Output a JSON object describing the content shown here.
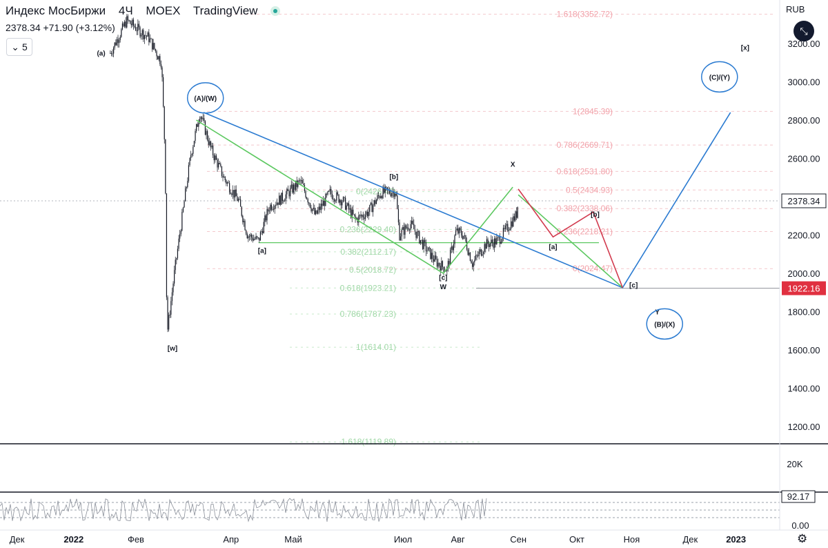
{
  "header": {
    "symbol": "Индекс МосБиржи",
    "interval": "4Ч",
    "exchange": "MOEX",
    "source": "TradingView",
    "last": "2378.34",
    "change": "+71.90 (+3.12%)",
    "interval_selector": "5",
    "currency": "RUB"
  },
  "colors": {
    "candle": "#131722",
    "trend_blue": "#2b7bd1",
    "trend_green": "#5cc860",
    "projection_red": "#d23a4e",
    "fib_red_text": "#f2a0a8",
    "fib_green_text": "#9fd8a6",
    "price_tag": "#131722",
    "target_tag": "#e03040"
  },
  "chart_data": {
    "type": "candlestick",
    "title": "",
    "x_ticks": [
      "Дек",
      "2022",
      "Фев",
      "Апр",
      "Май",
      "Июл",
      "Авг",
      "Сен",
      "Окт",
      "Ноя",
      "Дек",
      "2023"
    ],
    "y_ticks": [
      "3200.00",
      "3000.00",
      "2800.00",
      "2600.00",
      "2400.00",
      "2200.00",
      "2000.00",
      "1800.00",
      "1600.00",
      "1400.00",
      "1200.00"
    ],
    "ylim": [
      1100,
      3430
    ],
    "price_path": [
      [
        "2022-01-25",
        3150
      ],
      [
        "2022-02-03",
        3320
      ],
      [
        "2022-02-15",
        3230
      ],
      [
        "2022-02-22",
        3100
      ],
      [
        "2022-02-24",
        2600
      ],
      [
        "2022-02-25",
        1680
      ],
      [
        "2022-03-01",
        2000
      ],
      [
        "2022-03-10",
        2620
      ],
      [
        "2022-03-15",
        2840
      ],
      [
        "2022-03-21",
        2650
      ],
      [
        "2022-03-28",
        2500
      ],
      [
        "2022-04-05",
        2380
      ],
      [
        "2022-04-10",
        2200
      ],
      [
        "2022-04-16",
        2170
      ],
      [
        "2022-04-22",
        2350
      ],
      [
        "2022-04-30",
        2400
      ],
      [
        "2022-05-09",
        2480
      ],
      [
        "2022-05-17",
        2300
      ],
      [
        "2022-05-25",
        2420
      ],
      [
        "2022-06-01",
        2380
      ],
      [
        "2022-06-08",
        2280
      ],
      [
        "2022-06-15",
        2320
      ],
      [
        "2022-06-22",
        2420
      ],
      [
        "2022-06-30",
        2430
      ],
      [
        "2022-07-02",
        2200
      ],
      [
        "2022-07-08",
        2260
      ],
      [
        "2022-07-15",
        2150
      ],
      [
        "2022-07-22",
        2060
      ],
      [
        "2022-07-28",
        2020
      ],
      [
        "2022-08-02",
        2220
      ],
      [
        "2022-08-06",
        2200
      ],
      [
        "2022-08-11",
        2050
      ],
      [
        "2022-08-18",
        2150
      ],
      [
        "2022-08-25",
        2170
      ],
      [
        "2022-08-31",
        2250
      ],
      [
        "2022-09-04",
        2306
      ],
      [
        "2022-09-05",
        2378.34
      ]
    ],
    "last_price": 2378.34,
    "target_price": 1922.16,
    "horizontal_lines": [
      2378.34,
      1922.16,
      2160
    ],
    "trendlines": [
      {
        "color": "blue",
        "points": [
          [
            "2022-03-17",
            2840
          ],
          [
            "2022-11-01",
            1925
          ],
          [
            "2022-12-30",
            2840
          ]
        ]
      },
      {
        "color": "green",
        "points": [
          [
            "2022-03-13",
            2800
          ],
          [
            "2022-07-26",
            2000
          ],
          [
            "2022-09-02",
            2450
          ]
        ]
      },
      {
        "color": "green",
        "points": [
          [
            "2022-09-05",
            2410
          ],
          [
            "2022-11-01",
            1925
          ]
        ]
      },
      {
        "color": "red",
        "points": [
          [
            "2022-09-05",
            2440
          ],
          [
            "2022-09-24",
            2190
          ],
          [
            "2022-10-16",
            2320
          ],
          [
            "2022-11-01",
            1925
          ]
        ]
      }
    ],
    "fib_red": [
      {
        "label": "1.618(3352.72)",
        "value": 3352.72
      },
      {
        "label": "1(2845.39)",
        "value": 2845.39
      },
      {
        "label": "0.786(2669.71)",
        "value": 2669.71
      },
      {
        "label": "0.618(2531.80)",
        "value": 2531.8
      },
      {
        "label": "0.5(2434.93)",
        "value": 2434.93
      },
      {
        "label": "0.382(2338.06)",
        "value": 2338.06
      },
      {
        "label": "0.236(2218.21)",
        "value": 2218.21
      },
      {
        "label": "0(2024.47)",
        "value": 2024.47
      }
    ],
    "fib_green": [
      {
        "label": "0(2426.47)",
        "value": 2426.47
      },
      {
        "label": "0.236(2229.40)",
        "value": 2229.4
      },
      {
        "label": "0.382(2112.17)",
        "value": 2112.17
      },
      {
        "label": "0.5(2018.72)",
        "value": 2018.72
      },
      {
        "label": "0.618(1923.21)",
        "value": 1923.21
      },
      {
        "label": "0.786(1787.23)",
        "value": 1787.23
      },
      {
        "label": "1(1614.01)",
        "value": 1614.01
      },
      {
        "label": "1.618(1119.89)",
        "value": 1119.89
      }
    ],
    "wave_labels": [
      {
        "text": "(a)",
        "date": "2022-01-20",
        "value": 3140
      },
      {
        "text": "[w]",
        "date": "2022-02-28",
        "value": 1600
      },
      {
        "text": "(A)/(W)",
        "date": "2022-03-18",
        "value": 2905,
        "circled": true
      },
      {
        "text": "[a]",
        "date": "2022-04-18",
        "value": 2110
      },
      {
        "text": "[b]",
        "date": "2022-06-29",
        "value": 2495
      },
      {
        "text": "[c]",
        "date": "2022-07-26",
        "value": 1970
      },
      {
        "text": "W",
        "date": "2022-07-26",
        "value": 1920
      },
      {
        "text": "X",
        "date": "2022-09-02",
        "value": 2560
      },
      {
        "text": "[a]",
        "date": "2022-09-24",
        "value": 2130
      },
      {
        "text": "[b]",
        "date": "2022-10-17",
        "value": 2300
      },
      {
        "text": "[c]",
        "date": "2022-11-07",
        "value": 1930
      },
      {
        "text": "Y",
        "date": "2022-11-20",
        "value": 1790
      },
      {
        "text": "(B)/(X)",
        "date": "2022-11-24",
        "value": 1725,
        "circled": true
      },
      {
        "text": "(C)/(Y)",
        "date": "2022-12-24",
        "value": 3015,
        "circled": true
      },
      {
        "text": "[x]",
        "date": "2023-01-07",
        "value": 3170
      }
    ],
    "volume_axis_label": "20K",
    "oscillator": {
      "last": "92.17",
      "axis_label": "0.00"
    }
  }
}
